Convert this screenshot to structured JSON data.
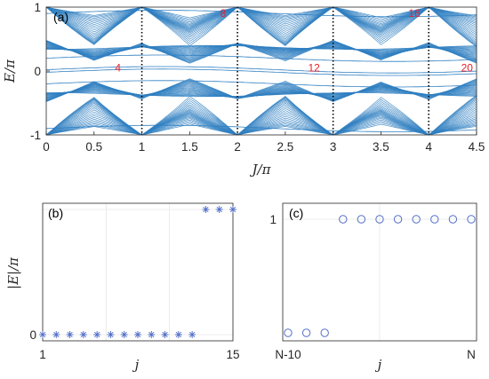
{
  "colors": {
    "band_line": "#2f7fc1",
    "marker": "#5470c8",
    "annotation": "#e8202a",
    "axis": "#262626",
    "grid": "#e6e6e6",
    "guide": "#000000"
  },
  "panel_labels": {
    "a": "(a)",
    "b": "(b)",
    "c": "(c)"
  },
  "axis_labels": {
    "a_x": "J/π",
    "a_y": "E/π",
    "b_x": "j",
    "b_y": "|E|/π",
    "c_x": "j"
  },
  "chart_data": [
    {
      "type": "line",
      "panel": "(a)",
      "xlabel": "J/π",
      "ylabel": "E/π",
      "xlim": [
        0,
        4.5
      ],
      "ylim": [
        -1,
        1
      ],
      "xticks": [
        "0",
        "0.5",
        "1",
        "1.5",
        "2",
        "2.5",
        "3",
        "3.5",
        "4",
        "4.5"
      ],
      "yticks": [
        "-1",
        "0",
        "1"
      ],
      "vertical_guides_at": [
        1,
        2,
        3,
        4
      ],
      "band_count_annotations": [
        {
          "x": 0.75,
          "y": 0.05,
          "label": "4"
        },
        {
          "x": 1.85,
          "y": 0.9,
          "label": "8"
        },
        {
          "x": 2.8,
          "y": 0.05,
          "label": "12"
        },
        {
          "x": 3.85,
          "y": 0.9,
          "label": "16"
        },
        {
          "x": 4.4,
          "y": 0.05,
          "label": "20"
        }
      ],
      "series": [
        {
          "values_description_omitted": true,
          "nodes_at_integer_J": [
            0,
            1,
            2,
            3,
            4
          ],
          "extreme_value_at_nodes": 1
        }
      ]
    },
    {
      "type": "scatter",
      "panel": "(b)",
      "marker": "asterisk",
      "xlabel": "j",
      "ylabel": "|E|/π",
      "xticks": [
        "1",
        "15"
      ],
      "yticks": [
        "0"
      ],
      "x": [
        1,
        2,
        3,
        4,
        5,
        6,
        7,
        8,
        9,
        10,
        11,
        12,
        13,
        14,
        15
      ],
      "y": [
        0,
        0,
        0,
        0,
        0,
        0,
        0,
        0,
        0,
        0,
        0,
        0,
        1,
        1,
        1
      ],
      "xlim": [
        1,
        15
      ],
      "ylim": [
        0,
        1
      ]
    },
    {
      "type": "scatter",
      "panel": "(c)",
      "marker": "circle",
      "xlabel": "j",
      "xticks": [
        "N-10",
        "N"
      ],
      "yticks": [
        "1"
      ],
      "x": [
        0,
        1,
        2,
        3,
        4,
        5,
        6,
        7,
        8,
        9,
        10
      ],
      "y": [
        0,
        0,
        0,
        1,
        1,
        1,
        1,
        1,
        1,
        1,
        1
      ],
      "xlim": [
        0,
        10
      ],
      "ylim": [
        0,
        1
      ]
    }
  ]
}
